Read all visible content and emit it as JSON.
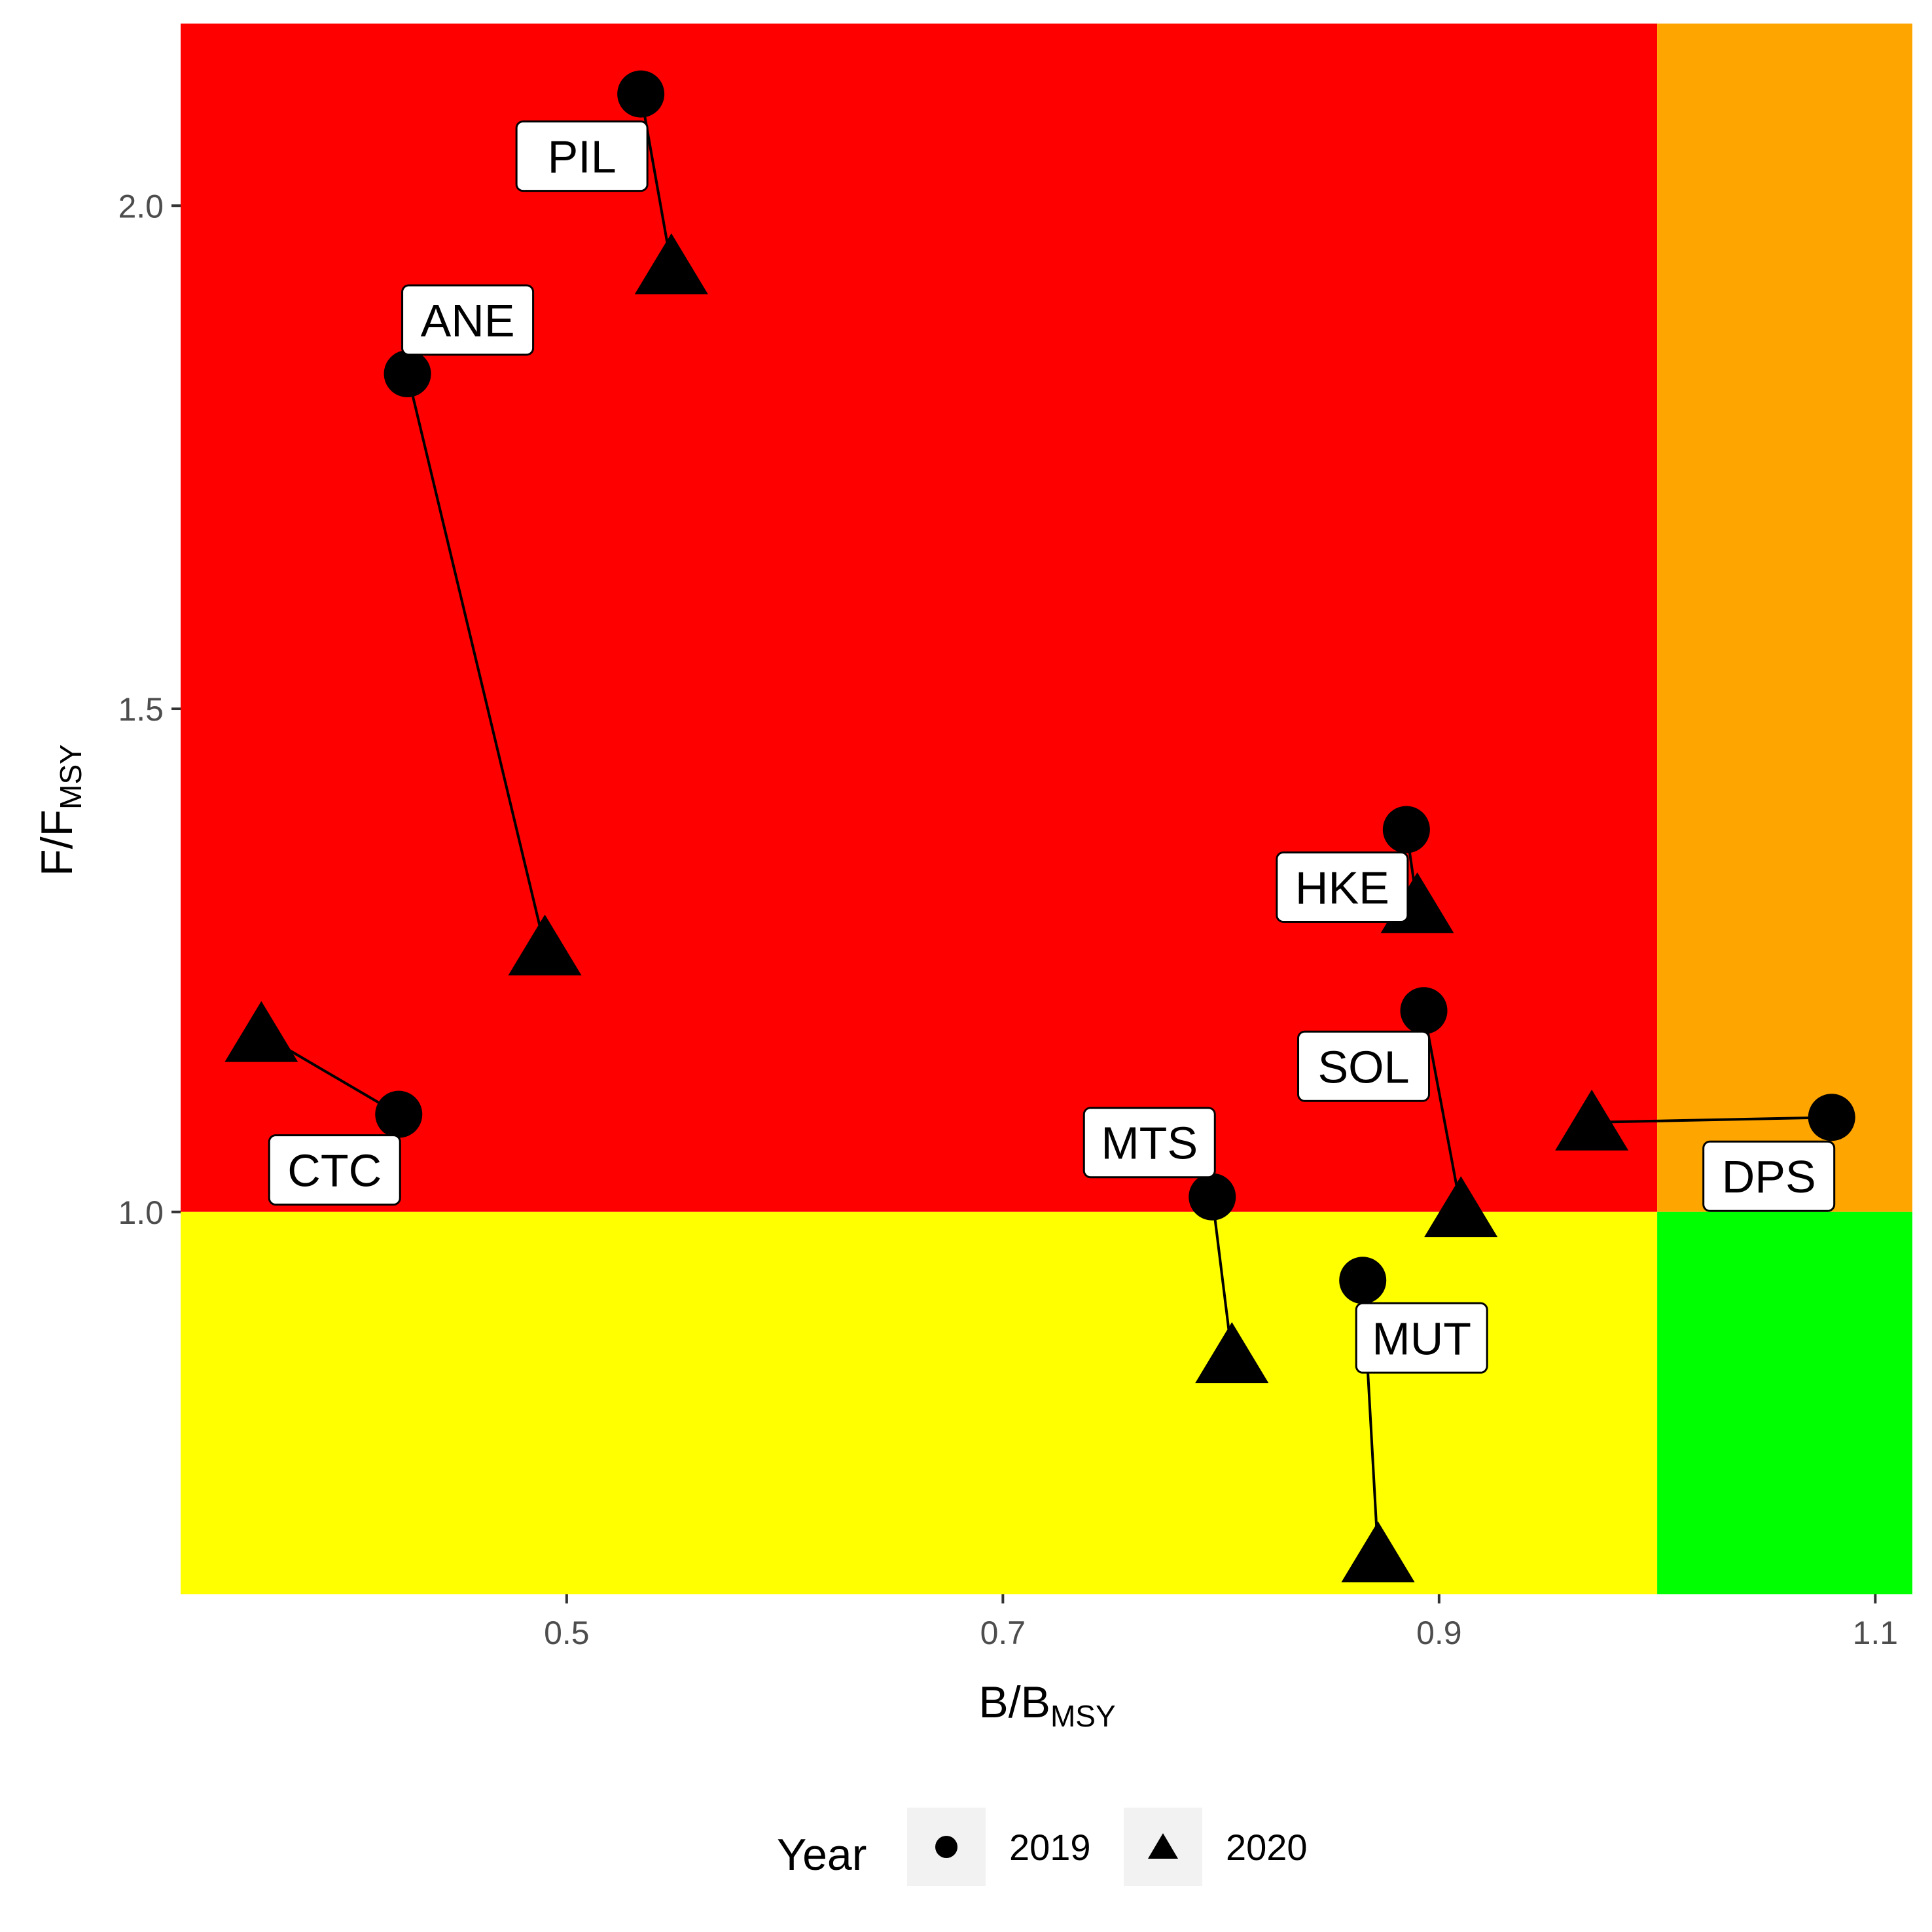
{
  "chart_data": {
    "type": "scatter",
    "xlabel": {
      "main": "B/B",
      "sub": "MSY"
    },
    "ylabel": {
      "main": "F/F",
      "sub": "MSY"
    },
    "xlim": [
      0.323,
      1.117
    ],
    "ylim": [
      0.62,
      2.181
    ],
    "xticks": [
      {
        "value": 0.5,
        "label": "0.5"
      },
      {
        "value": 0.7,
        "label": "0.7"
      },
      {
        "value": 0.9,
        "label": "0.9"
      },
      {
        "value": 1.1,
        "label": "1.1"
      }
    ],
    "yticks": [
      {
        "value": 1.0,
        "label": "1.0"
      },
      {
        "value": 1.5,
        "label": "1.5"
      },
      {
        "value": 2.0,
        "label": "2.0"
      }
    ],
    "grid": false,
    "reference_lines": {
      "x": 1.0,
      "y": 1.0
    },
    "quadrant_colors": {
      "top_left": "#ff0000",
      "top_right": "#ffa500",
      "bottom_left": "#ffff00",
      "bottom_right": "#00ff00"
    },
    "legend": {
      "title": "Year",
      "position": "bottom",
      "entries": [
        {
          "label": "2019",
          "shape": "circle"
        },
        {
          "label": "2020",
          "shape": "triangle"
        }
      ]
    },
    "stocks": [
      {
        "name": "PIL",
        "y2019": [
          0.534,
          2.111
        ],
        "y2020": [
          0.548,
          1.94
        ]
      },
      {
        "name": "ANE",
        "y2019": [
          0.427,
          1.833
        ],
        "y2020": [
          0.49,
          1.263
        ]
      },
      {
        "name": "CTC",
        "y2019": [
          0.423,
          1.097
        ],
        "y2020": [
          0.36,
          1.177
        ]
      },
      {
        "name": "HKE",
        "y2019": [
          0.885,
          1.38
        ],
        "y2020": [
          0.89,
          1.305
        ]
      },
      {
        "name": "SOL",
        "y2019": [
          0.893,
          1.2
        ],
        "y2020": [
          0.91,
          1.003
        ]
      },
      {
        "name": "MTS",
        "y2019": [
          0.796,
          1.015
        ],
        "y2020": [
          0.805,
          0.858
        ]
      },
      {
        "name": "MUT",
        "y2019": [
          0.865,
          0.932
        ],
        "y2020": [
          0.872,
          0.66
        ]
      },
      {
        "name": "DPS",
        "y2019": [
          1.08,
          1.094
        ],
        "y2020": [
          0.97,
          1.089
        ]
      }
    ],
    "point_color": "#000000",
    "label_box_color": "#ffffff"
  }
}
